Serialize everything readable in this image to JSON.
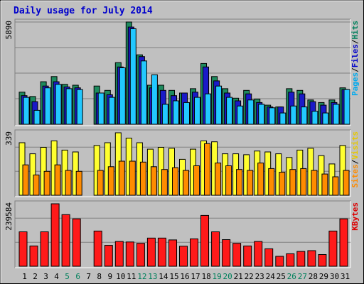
{
  "chart_data": {
    "type": "bar",
    "title": "Daily usage for July 2014",
    "days": [
      "1",
      "2",
      "3",
      "4",
      "5",
      "6",
      "7",
      "8",
      "9",
      "10",
      "11",
      "12",
      "13",
      "14",
      "15",
      "16",
      "17",
      "18",
      "19",
      "20",
      "21",
      "22",
      "23",
      "24",
      "25",
      "26",
      "27",
      "28",
      "29",
      "30",
      "31"
    ],
    "weekend_days": [
      "5",
      "6",
      "12",
      "13",
      "19",
      "20",
      "26",
      "27"
    ],
    "panels": [
      {
        "id": "hits",
        "max_label": "5890",
        "max": 5890,
        "right_label_parts": [
          "Pages",
          "/",
          "Files",
          "/",
          "Hits"
        ],
        "right_label_colors": [
          "#00aaee",
          "#000000",
          "#0000cc",
          "#000000",
          "#00805c"
        ],
        "series": [
          {
            "name": "Hits",
            "color": "#1e8a5e",
            "values": [
              1850,
              1600,
              2450,
              2750,
              2300,
              2250,
              0,
              2200,
              1950,
              3550,
              5890,
              4000,
              2250,
              2250,
              1950,
              1800,
              2050,
              3500,
              2750,
              2050,
              1500,
              1950,
              1450,
              1100,
              1000,
              2050,
              1950,
              1400,
              1250,
              1400,
              2100
            ]
          },
          {
            "name": "Files",
            "color": "#1a1ac8",
            "values": [
              1650,
              1300,
              2200,
              2450,
              2150,
              2100,
              0,
              1800,
              1700,
              3300,
              5600,
              3900,
              2100,
              1950,
              1650,
              1800,
              1850,
              3300,
              2500,
              1800,
              1350,
              1750,
              1250,
              1000,
              1000,
              1850,
              1750,
              1300,
              1100,
              1250,
              2000
            ]
          },
          {
            "name": "Pages",
            "color": "#22c8ff",
            "values": [
              1550,
              800,
              2100,
              2300,
              2050,
              2000,
              0,
              1800,
              1550,
              3250,
              5500,
              3650,
              2850,
              1150,
              1350,
              1250,
              1550,
              1750,
              2200,
              1550,
              1050,
              1400,
              1150,
              950,
              650,
              1050,
              1000,
              750,
              650,
              1150,
              2000
            ]
          }
        ]
      },
      {
        "id": "visits",
        "max_label": "339",
        "max": 339,
        "right_label_parts": [
          "Sites",
          "/",
          "Visits"
        ],
        "right_label_colors": [
          "#ff8c00",
          "#000000",
          "#e6c800"
        ],
        "series": [
          {
            "name": "Visits",
            "color": "#ffff30",
            "values": [
              285,
              225,
              260,
              295,
              245,
              235,
              0,
              270,
              285,
              339,
              310,
              285,
              250,
              260,
              255,
              195,
              250,
              295,
              290,
              225,
              225,
              220,
              240,
              235,
              225,
              205,
              245,
              255,
              215,
              170,
              270
            ]
          },
          {
            "name": "Sites",
            "color": "#ff8c00",
            "values": [
              165,
              110,
              130,
              165,
              135,
              130,
              0,
              135,
              155,
              185,
              185,
              180,
              155,
              140,
              150,
              135,
              160,
              280,
              175,
              160,
              140,
              135,
              175,
              145,
              125,
              140,
              145,
              135,
              115,
              100,
              135
            ]
          }
        ]
      },
      {
        "id": "kbytes",
        "max_label": "239584",
        "max": 239584,
        "right_label_parts": [
          "KBytes"
        ],
        "right_label_colors": [
          "#dd0000"
        ],
        "series": [
          {
            "name": "KBytes",
            "color": "#ff1a1a",
            "values": [
              132000,
              78000,
              132000,
              239584,
              198000,
              182000,
              0,
              135000,
              80000,
              95000,
              93000,
              88000,
              108000,
              108000,
              101000,
              77000,
              105000,
              195000,
              132000,
              102000,
              88000,
              78000,
              95000,
              67000,
              38000,
              48000,
              57000,
              60000,
              45000,
              135000,
              182000
            ]
          }
        ]
      }
    ],
    "grid": true,
    "background_color": "#c0c0c0",
    "weekday_label_color": "#000000",
    "weekend_label_color": "#00805c"
  }
}
